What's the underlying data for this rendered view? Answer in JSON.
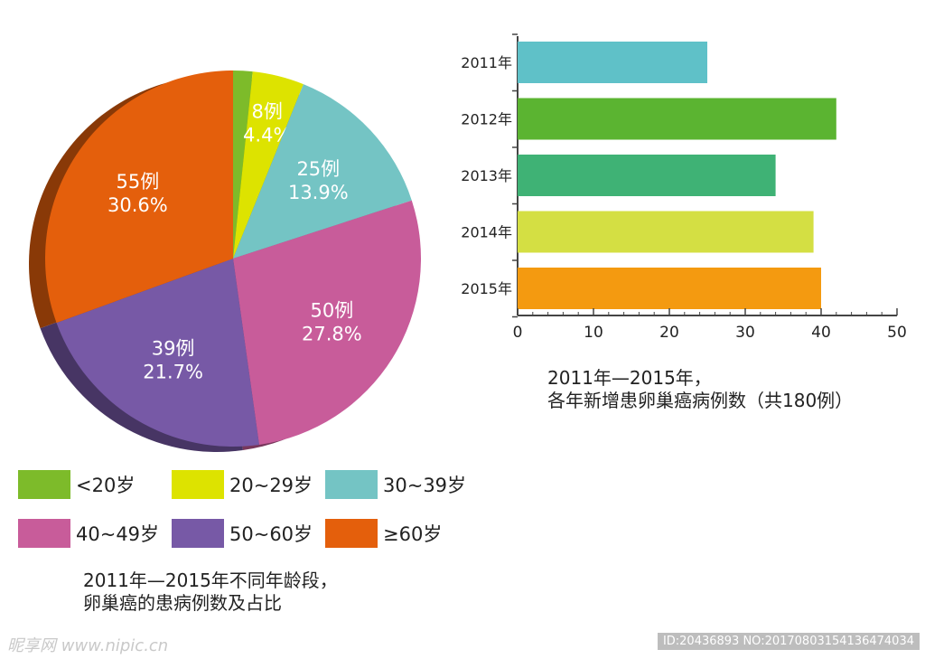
{
  "chart_data": [
    {
      "type": "pie",
      "slices": [
        {
          "category": "<20岁",
          "count_label": "",
          "percent_label": "",
          "value": 3,
          "color": "#7dbb2a"
        },
        {
          "category": "20~29岁",
          "count_label": "8例",
          "percent_label": "4.4%",
          "value": 8,
          "color": "#dde300"
        },
        {
          "category": "30~39岁",
          "count_label": "25例",
          "percent_label": "13.9%",
          "value": 25,
          "color": "#74c4c4"
        },
        {
          "category": "40~49岁",
          "count_label": "50例",
          "percent_label": "27.8%",
          "value": 50,
          "color": "#c85c9a"
        },
        {
          "category": "50~60岁",
          "count_label": "39例",
          "percent_label": "21.7%",
          "value": 39,
          "color": "#7759a6"
        },
        {
          "category": "≥60岁",
          "count_label": "55例",
          "percent_label": "30.6%",
          "value": 55,
          "color": "#e45f0c"
        }
      ],
      "caption_line1": "2011年—2015年不同年龄段，",
      "caption_line2": "卵巢癌的患病例数及占比"
    },
    {
      "type": "bar",
      "orientation": "horizontal",
      "categories": [
        "2011年",
        "2012年",
        "2013年",
        "2014年",
        "2015年"
      ],
      "values": [
        25,
        42,
        34,
        39,
        40
      ],
      "colors": [
        "#5fc1c8",
        "#5bb431",
        "#3fb275",
        "#d4df43",
        "#f49a10"
      ],
      "xlim": [
        0,
        50
      ],
      "xticks": [
        "0",
        "10",
        "20",
        "30",
        "40",
        "50"
      ],
      "caption_line1": "2011年—2015年，",
      "caption_line2": "各年新增患卵巢癌病例数（共180例）"
    }
  ],
  "legend": [
    {
      "label": "<20岁",
      "color": "#7dbb2a"
    },
    {
      "label": "20~29岁",
      "color": "#dde300"
    },
    {
      "label": "30~39岁",
      "color": "#74c4c4"
    },
    {
      "label": "40~49岁",
      "color": "#c85c9a"
    },
    {
      "label": "50~60岁",
      "color": "#7759a6"
    },
    {
      "label": "≥60岁",
      "color": "#e45f0c"
    }
  ],
  "watermark": {
    "left": "昵享网 www.nipic.cn",
    "right": "ID:20436893 NO:20170803154136474034"
  }
}
